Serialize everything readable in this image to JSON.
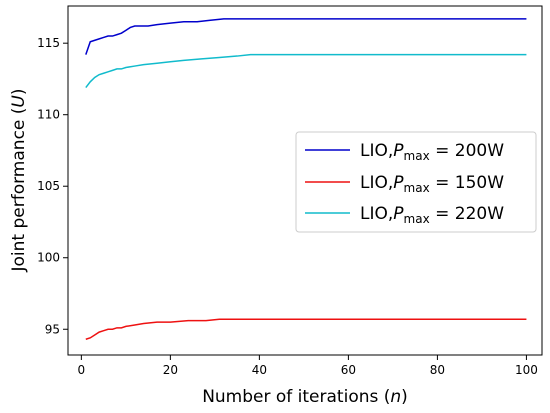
{
  "chart_data": {
    "type": "line",
    "title": "",
    "xlabel": {
      "prefix": "Number of iterations (",
      "symbol": "n",
      "suffix": ")"
    },
    "ylabel": {
      "prefix": "Joint performance (",
      "symbol": "U",
      "suffix": ")"
    },
    "xlim": [
      -3,
      103.5
    ],
    "ylim": [
      93.2,
      117.6
    ],
    "xticks": [
      0,
      20,
      40,
      60,
      80,
      100
    ],
    "yticks": [
      95,
      100,
      105,
      110,
      115
    ],
    "grid": false,
    "legend_position": "center-right",
    "series": [
      {
        "name": "LIO,Pmax = 200W",
        "legend": {
          "prefix": "LIO,",
          "symbol": "P",
          "subscript": "max",
          "suffix": " = 200W"
        },
        "color": "#0000cc",
        "x": [
          1,
          2,
          4,
          5,
          6,
          7,
          8,
          9,
          10,
          11,
          12,
          13,
          15,
          17,
          20,
          23,
          26,
          29,
          32,
          34,
          40,
          50,
          60,
          70,
          80,
          90,
          100
        ],
        "y": [
          114.2,
          115.1,
          115.3,
          115.4,
          115.5,
          115.5,
          115.6,
          115.7,
          115.9,
          116.1,
          116.2,
          116.2,
          116.2,
          116.3,
          116.4,
          116.5,
          116.5,
          116.6,
          116.7,
          116.7,
          116.7,
          116.7,
          116.7,
          116.7,
          116.7,
          116.7,
          116.7
        ]
      },
      {
        "name": "LIO,Pmax = 150W",
        "legend": {
          "prefix": "LIO,",
          "symbol": "P",
          "subscript": "max",
          "suffix": " = 150W"
        },
        "color": "#ee1111",
        "x": [
          1,
          2,
          3,
          4,
          5,
          6,
          7,
          8,
          9,
          10,
          12,
          14,
          17,
          20,
          24,
          28,
          31,
          40,
          50,
          60,
          70,
          80,
          90,
          100
        ],
        "y": [
          94.3,
          94.4,
          94.6,
          94.8,
          94.9,
          95.0,
          95.0,
          95.1,
          95.1,
          95.2,
          95.3,
          95.4,
          95.5,
          95.5,
          95.6,
          95.6,
          95.7,
          95.7,
          95.7,
          95.7,
          95.7,
          95.7,
          95.7,
          95.7
        ]
      },
      {
        "name": "LIO,Pmax = 220W",
        "legend": {
          "prefix": "LIO,",
          "symbol": "P",
          "subscript": "max",
          "suffix": " = 220W"
        },
        "color": "#11bbcc",
        "x": [
          1,
          2,
          3,
          4,
          5,
          6,
          7,
          8,
          9,
          10,
          12,
          14,
          17,
          20,
          23,
          27,
          31,
          35,
          38,
          40,
          50,
          60,
          70,
          80,
          90,
          100
        ],
        "y": [
          111.9,
          112.3,
          112.6,
          112.8,
          112.9,
          113.0,
          113.1,
          113.2,
          113.2,
          113.3,
          113.4,
          113.5,
          113.6,
          113.7,
          113.8,
          113.9,
          114.0,
          114.1,
          114.2,
          114.2,
          114.2,
          114.2,
          114.2,
          114.2,
          114.2,
          114.2
        ]
      }
    ]
  }
}
